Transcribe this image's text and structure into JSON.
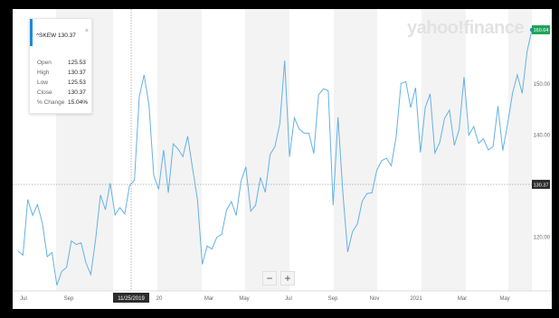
{
  "brand": {
    "logo_text": "yahoo!finance"
  },
  "tooltip": {
    "symbol": "^SKEW 130.37",
    "close_icon": "close-icon",
    "rows": [
      {
        "label": "Open",
        "value": "125.53"
      },
      {
        "label": "High",
        "value": "130.37"
      },
      {
        "label": "Low",
        "value": "125.53"
      },
      {
        "label": "Close",
        "value": "130.37"
      },
      {
        "label": "% Change",
        "value": "15.04%"
      }
    ]
  },
  "controls": {
    "zoom_out": "−",
    "zoom_in": "+"
  },
  "chart_data": {
    "type": "line",
    "title": "",
    "xlabel": "",
    "ylabel": "",
    "x_tick_labels": [
      "Jul",
      "Sep",
      "11/25/2019",
      "Mar",
      "May",
      "Jul",
      "Sep",
      "Nov",
      "2021",
      "Mar",
      "May"
    ],
    "y_tick_labels": [
      "120.00",
      "140.00",
      "150.00"
    ],
    "ylim": [
      109.5,
      164
    ],
    "crosshair": {
      "x_label": "11/25/2019",
      "y_label": "130.37",
      "y_value": 130.37
    },
    "last_price_label": "160.64",
    "last_value": 160.64,
    "grid": "alternating vertical bands",
    "colors": {
      "line": "#64b1e6",
      "last_badge": "#1fa35c",
      "crosshair_badge": "#2c2c2c"
    },
    "series": [
      {
        "values": [
          117.3,
          116.5,
          127.4,
          124.3,
          126.4,
          122.8,
          116.2,
          117.0,
          110.6,
          113.3,
          114.1,
          119.3,
          118.6,
          118.9,
          115.0,
          112.7,
          119.6,
          128.3,
          125.4,
          130.6,
          124.4,
          125.8,
          124.6,
          130.1,
          131.2,
          147.5,
          151.8,
          145.9,
          132.1,
          129.4,
          137.1,
          128.7,
          138.3,
          137.3,
          135.8,
          139.8,
          133.5,
          127.4,
          114.7,
          118.3,
          117.7,
          120.0,
          120.6,
          125.3,
          127.0,
          124.3,
          131.0,
          133.8,
          125.1,
          126.3,
          131.7,
          128.8,
          136.2,
          137.8,
          142.3,
          154.6,
          135.8,
          143.4,
          141.2,
          140.4,
          140.4,
          136.4,
          147.9,
          149.1,
          148.7,
          126.3,
          143.5,
          128.8,
          117.1,
          121.1,
          122.6,
          127.1,
          128.6,
          128.7,
          133.1,
          135.0,
          135.5,
          134.0,
          139.8,
          150.1,
          150.5,
          145.4,
          149.3,
          136.6,
          145.4,
          148.1,
          136.5,
          138.6,
          143.3,
          144.9,
          138.0,
          141.1,
          151.4,
          140.0,
          141.7,
          138.4,
          139.3,
          137.1,
          137.8,
          145.7,
          137.0,
          142.2,
          148.2,
          151.8,
          148.2,
          156.3,
          160.64
        ]
      }
    ]
  }
}
